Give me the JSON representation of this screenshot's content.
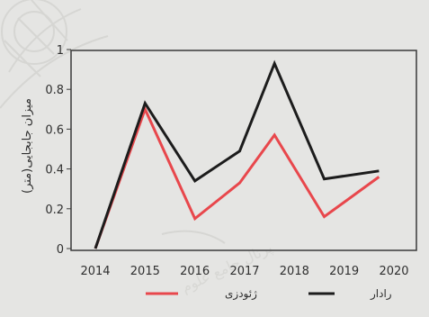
{
  "chart_data": {
    "type": "line",
    "title": "",
    "xlabel": "",
    "ylabel": "میزان جابجایی(متر)",
    "x": [
      "2014",
      "2015",
      "2016",
      "2017",
      "2018",
      "2019",
      "2020"
    ],
    "x_numeric": [
      2014,
      2015,
      2016,
      2017,
      2018,
      2019,
      2020
    ],
    "ylim": [
      0,
      1
    ],
    "xlim": [
      2014,
      2020
    ],
    "yticks": [
      0,
      0.2,
      0.4,
      0.6,
      0.8,
      1
    ],
    "ytick_labels": [
      "0",
      "0.2",
      "0.4",
      "0.6",
      "0.8",
      "1"
    ],
    "grid": false,
    "legend_position": "bottom",
    "series": [
      {
        "name": "رادار",
        "color": "#1c1c1c",
        "points": [
          [
            2014,
            0.0
          ],
          [
            2015,
            0.73
          ],
          [
            2016,
            0.34
          ],
          [
            2016.9,
            0.49
          ],
          [
            2017.6,
            0.93
          ],
          [
            2018.6,
            0.35
          ],
          [
            2019.7,
            0.39
          ]
        ]
      },
      {
        "name": "ژئودزی",
        "color": "#e8474c",
        "points": [
          [
            2014,
            0.0
          ],
          [
            2015,
            0.7
          ],
          [
            2016,
            0.15
          ],
          [
            2016.9,
            0.33
          ],
          [
            2017.6,
            0.57
          ],
          [
            2018.6,
            0.16
          ],
          [
            2019.7,
            0.36
          ]
        ]
      }
    ]
  }
}
